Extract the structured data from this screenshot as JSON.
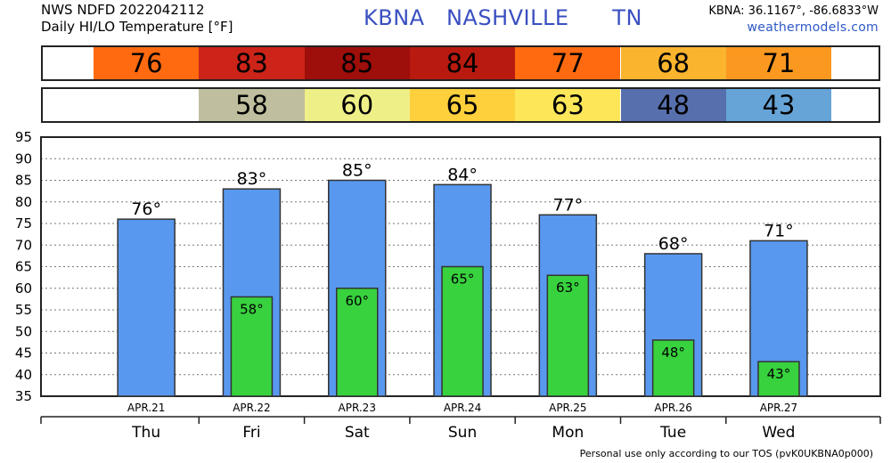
{
  "header": {
    "line1": "NWS NDFD 2022042112",
    "line2": "Daily HI/LO Temperature [°F]",
    "station_title": "KBNA   NASHVILLE      TN",
    "coords": "KBNA: 36.1167°, -86.6833°W",
    "site": "weathermodels.com"
  },
  "high_strip": [
    {
      "value": "76",
      "color": "#ff6a10"
    },
    {
      "value": "83",
      "color": "#cc2418"
    },
    {
      "value": "85",
      "color": "#9e0e0a"
    },
    {
      "value": "84",
      "color": "#b91a10"
    },
    {
      "value": "77",
      "color": "#ff6a10"
    },
    {
      "value": "68",
      "color": "#fbb42e"
    },
    {
      "value": "71",
      "color": "#fb9820"
    }
  ],
  "low_strip": [
    {
      "value": "",
      "color": "#ffffff"
    },
    {
      "value": "58",
      "color": "#bfbf9f"
    },
    {
      "value": "60",
      "color": "#efef88"
    },
    {
      "value": "65",
      "color": "#fdd03c"
    },
    {
      "value": "63",
      "color": "#fde758"
    },
    {
      "value": "48",
      "color": "#5770ad"
    },
    {
      "value": "43",
      "color": "#66a4d7"
    }
  ],
  "colors": {
    "high_bar": "#5898ee",
    "low_bar": "#38d23e",
    "bar_outline": "#333333"
  },
  "chart_data": {
    "type": "bar",
    "categories": [
      "Thu",
      "Fri",
      "Sat",
      "Sun",
      "Mon",
      "Tue",
      "Wed"
    ],
    "dates": [
      "APR.21",
      "APR.22",
      "APR.23",
      "APR.24",
      "APR.25",
      "APR.26",
      "APR.27"
    ],
    "series": [
      {
        "values": [
          76,
          83,
          85,
          84,
          77,
          68,
          71
        ]
      },
      {
        "values": [
          null,
          58,
          60,
          65,
          63,
          48,
          43
        ]
      }
    ],
    "ylim": [
      35,
      95
    ],
    "yticks": [
      35,
      40,
      45,
      50,
      55,
      60,
      65,
      70,
      75,
      80,
      85,
      90,
      95
    ],
    "high_labels": [
      "76°",
      "83°",
      "85°",
      "84°",
      "77°",
      "68°",
      "71°"
    ],
    "low_labels": [
      "",
      "58°",
      "60°",
      "65°",
      "63°",
      "48°",
      "43°"
    ],
    "grid": true
  },
  "footer": {
    "tos": "Personal use only according to our TOS (pvK0UKBNA0p000)"
  }
}
